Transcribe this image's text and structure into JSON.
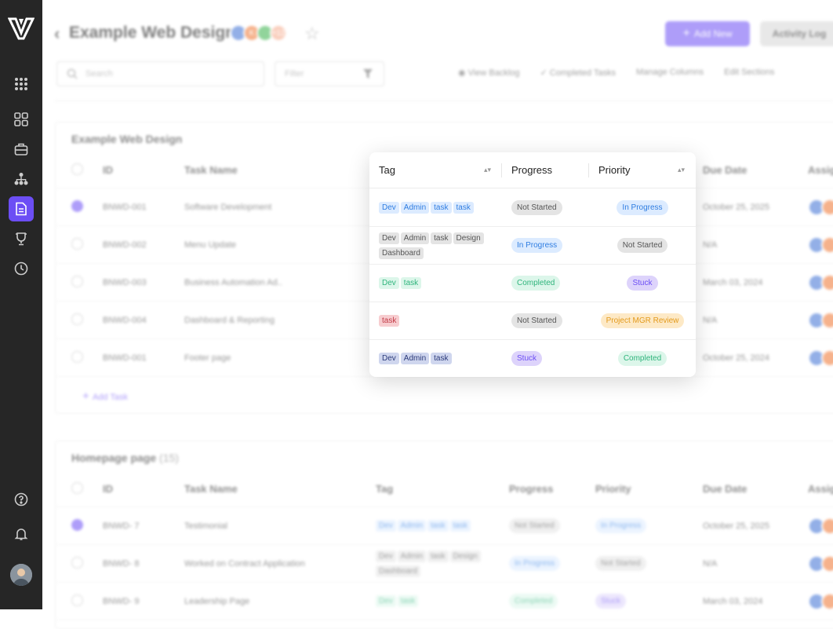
{
  "header": {
    "back_glyph": "‹",
    "title": "Example Web Design",
    "avatars": [
      {
        "label": "",
        "color": "#3b6fd4"
      },
      {
        "label": "K",
        "color": "#f0742f"
      },
      {
        "label": "",
        "color": "#38b24a"
      },
      {
        "label": "+12",
        "color": "#f6a98a"
      }
    ],
    "add_new_label": "Add New",
    "activity_log_label": "Activity Log"
  },
  "toolbar": {
    "search_placeholder": "Search",
    "filter_placeholder": "Filter",
    "links": [
      "View Backlog",
      "Completed Tasks",
      "Manage Columns",
      "Edit Sections"
    ]
  },
  "columns": {
    "id": "ID",
    "name": "Task Name",
    "tag": "Tag",
    "progress": "Progress",
    "priority": "Priority",
    "due": "Due Date",
    "assignee": "Assig"
  },
  "section1": {
    "title": "Example Web Design",
    "add_task_label": "Add Task",
    "rows": [
      {
        "checked": true,
        "id": "BNWD-001",
        "name": "Software Development",
        "due": "October 25, 2025"
      },
      {
        "checked": false,
        "id": "BNWD-002",
        "name": "Menu Update",
        "due": "N/A"
      },
      {
        "checked": false,
        "id": "BNWD-003",
        "name": "Business Automation Ad..",
        "due": "March 03, 2024"
      },
      {
        "checked": false,
        "id": "BNWD-004",
        "name": "Dashboard & Reporting",
        "due": "N/A"
      },
      {
        "checked": false,
        "id": "BNWD-001",
        "name": "Footer page",
        "due": "October 25, 2024"
      }
    ]
  },
  "section2": {
    "title": "Homepage page",
    "count": "(15)",
    "rows": [
      {
        "checked": true,
        "id": "BNWD- 7",
        "name": "Testimonial",
        "tags": [
          "Dev",
          "Admin",
          "task",
          "task"
        ],
        "tag_style": "blue",
        "progress": "Not Started",
        "progress_style": "grey",
        "priority": "In Progress",
        "priority_style": "blue",
        "due": "October 25, 2025"
      },
      {
        "checked": false,
        "id": "BNWD- 8",
        "name": "Worked on Contract Application",
        "tags": [
          "Dev",
          "Admin",
          "task",
          "Design",
          "Dashboard"
        ],
        "tag_style": "grey",
        "progress": "In Progress",
        "progress_style": "blue",
        "priority": "Not Started",
        "priority_style": "grey",
        "due": "N/A"
      },
      {
        "checked": false,
        "id": "BNWD- 9",
        "name": "Leadership Page",
        "tags": [
          "Dev",
          "task"
        ],
        "tag_style": "green",
        "progress": "Completed",
        "progress_style": "green",
        "priority": "Stuck",
        "priority_style": "purple",
        "due": "March 03, 2024"
      }
    ]
  },
  "popup": {
    "headers": {
      "tag": "Tag",
      "progress": "Progress",
      "priority": "Priority"
    },
    "rows": [
      {
        "tags": [
          "Dev",
          "Admin",
          "task",
          "task"
        ],
        "tag_style": "blue",
        "progress": "Not Started",
        "progress_style": "grey",
        "priority": "In Progress",
        "priority_style": "blue"
      },
      {
        "tags": [
          "Dev",
          "Admin",
          "task",
          "Design",
          "Dashboard"
        ],
        "tag_style": "grey",
        "progress": "In Progress",
        "progress_style": "blue",
        "priority": "Not Started",
        "priority_style": "grey"
      },
      {
        "tags": [
          "Dev",
          "task"
        ],
        "tag_style": "green",
        "progress": "Completed",
        "progress_style": "green",
        "priority": "Stuck",
        "priority_style": "purple"
      },
      {
        "tags": [
          "task"
        ],
        "tag_style": "red",
        "progress": "Not Started",
        "progress_style": "grey",
        "priority": "Project MGR Review",
        "priority_style": "orange"
      },
      {
        "tags": [
          "Dev",
          "Admin",
          "task"
        ],
        "tag_style": "navy",
        "progress": "Stuck",
        "progress_style": "purple",
        "priority": "Completed",
        "priority_style": "green"
      }
    ]
  },
  "styles": {
    "blue": {
      "bg": "#dcebff",
      "fg": "#2f7de1"
    },
    "grey": {
      "bg": "#e4e4e4",
      "fg": "#555555"
    },
    "green": {
      "bg": "#dcf6ea",
      "fg": "#2fb47c"
    },
    "purple": {
      "bg": "#ddd3fb",
      "fg": "#6c4ef5"
    },
    "red": {
      "bg": "#f7cdd0",
      "fg": "#c23b47"
    },
    "orange": {
      "bg": "#fde9c6",
      "fg": "#e39a1c"
    },
    "navy": {
      "bg": "#cfd6ee",
      "fg": "#2b3a7a"
    }
  },
  "accent": "#6c4ef5"
}
